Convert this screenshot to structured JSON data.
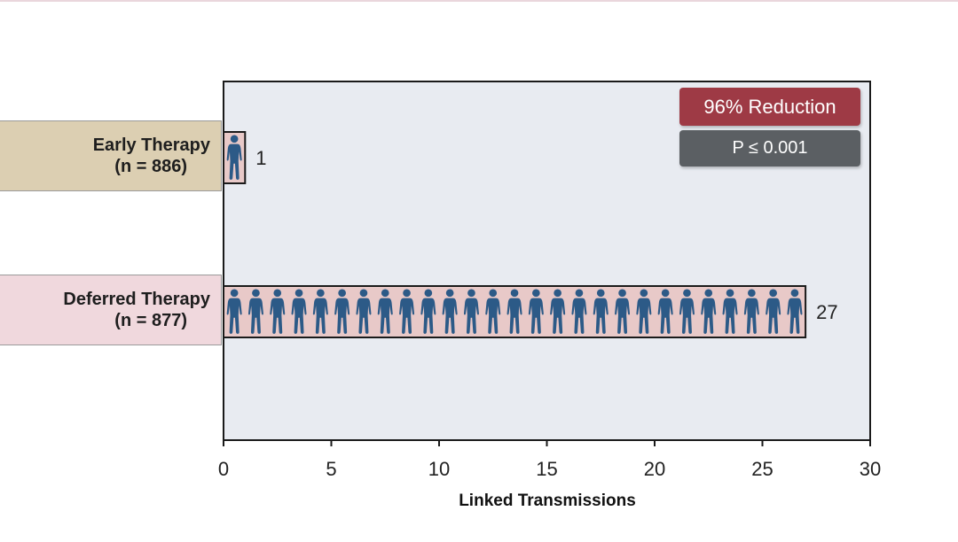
{
  "chart_data": {
    "type": "bar",
    "orientation": "horizontal",
    "categories": [
      {
        "line1": "Early Therapy",
        "line2": "(n = 886)"
      },
      {
        "line1": "Deferred Therapy",
        "line2": "(n = 877)"
      }
    ],
    "values": [
      1,
      27
    ],
    "value_labels": [
      "1",
      "27"
    ],
    "xlabel": "Linked Transmissions",
    "xlim": [
      0,
      30
    ],
    "xticks": [
      0,
      5,
      10,
      15,
      20,
      25,
      30
    ],
    "grid": false,
    "annotations": {
      "reduction": "96% Reduction",
      "p_value": "P ≤ 0.001"
    },
    "colors": {
      "plot_background": "#e8ebf1",
      "early_label_fill": "#dccfb2",
      "deferred_label_fill": "#f0d8dd",
      "bar_fill": "#e8c9c8",
      "figure_icon": "#2c5a87",
      "reduction_badge": "#9e3a45",
      "pvalue_badge": "#5b5f63"
    },
    "icons": {
      "unit_marker": "person-figure-icon"
    }
  }
}
